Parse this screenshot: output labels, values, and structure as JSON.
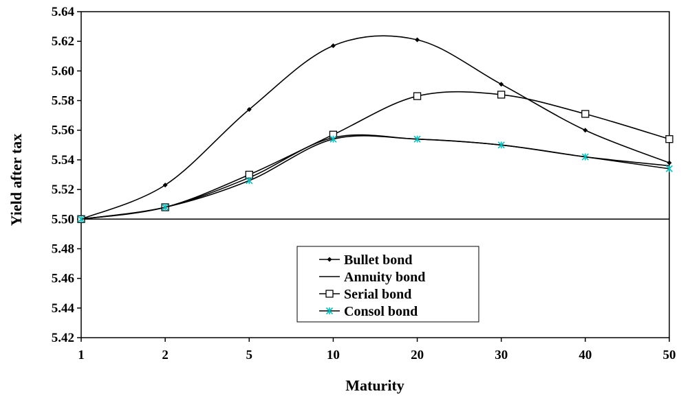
{
  "chart_data": {
    "type": "line",
    "xlabel": "Maturity",
    "ylabel": "Yield after tax",
    "categories": [
      "1",
      "2",
      "5",
      "10",
      "20",
      "30",
      "40",
      "50"
    ],
    "y_ticks": [
      "5.42",
      "5.44",
      "5.46",
      "5.48",
      "5.50",
      "5.52",
      "5.54",
      "5.56",
      "5.58",
      "5.60",
      "5.62",
      "5.64"
    ],
    "ylim": [
      5.42,
      5.64
    ],
    "reference_line": 5.5,
    "grid": false,
    "legend_position": "bottom-center",
    "series": [
      {
        "name": "Bullet bond",
        "marker": "diamond",
        "color": "#000000",
        "values": [
          5.5,
          5.523,
          5.574,
          5.617,
          5.621,
          5.591,
          5.56,
          5.538
        ]
      },
      {
        "name": "Annuity bond",
        "marker": "none",
        "color": "#000000",
        "values": [
          5.5,
          5.508,
          5.528,
          5.555,
          5.554,
          5.55,
          5.542,
          5.536
        ]
      },
      {
        "name": "Serial bond",
        "marker": "square",
        "color": "#000000",
        "values": [
          5.5,
          5.508,
          5.53,
          5.557,
          5.583,
          5.584,
          5.571,
          5.554
        ]
      },
      {
        "name": "Consol bond",
        "marker": "star",
        "color": "#000000",
        "marker_color": "#00c0c0",
        "values": [
          5.5,
          5.508,
          5.526,
          5.554,
          5.554,
          5.55,
          5.542,
          5.534
        ]
      }
    ]
  }
}
